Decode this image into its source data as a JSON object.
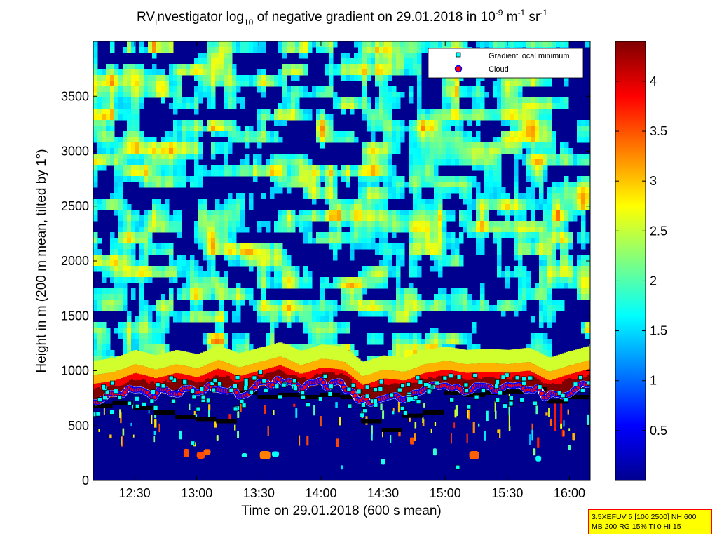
{
  "chart_data": {
    "type": "heatmap",
    "title_main": "RV",
    "title_sub": "I",
    "title_mid": "nvestigator log",
    "title_sub2": "10",
    "title_rest": " of negative gradient on 29.01.2018 in 10",
    "title_sup1": "-9",
    "title_unit_m": " m",
    "title_sup2": "-1",
    "title_unit_sr": " sr",
    "title_sup3": "-1",
    "xlabel": "Time on 29.01.2018 (600 s mean)",
    "ylabel": "Height in m (200 m mean, tilted by 1°)",
    "x_ticks": [
      "12:30",
      "13:00",
      "13:30",
      "14:00",
      "14:30",
      "15:00",
      "15:30",
      "16:00"
    ],
    "x_range": [
      "12:10",
      "16:10"
    ],
    "y_ticks": [
      0,
      500,
      1000,
      1500,
      2000,
      2500,
      3000,
      3500
    ],
    "ylim": [
      0,
      4000
    ],
    "colorbar": {
      "ticks": [
        0.5,
        1,
        1.5,
        2,
        2.5,
        3,
        3.5,
        4
      ],
      "range": [
        0,
        4.4
      ],
      "colormap": "jet"
    },
    "legend": {
      "placement": "top-right",
      "entries": [
        {
          "label": "Gradient local minimum",
          "marker": "square",
          "color": "#00ffff"
        },
        {
          "label": "Cloud",
          "marker": "circle",
          "color": "#ff0000"
        }
      ]
    },
    "cloud_layer": {
      "times": [
        "12:10",
        "12:20",
        "12:30",
        "12:40",
        "12:50",
        "13:00",
        "13:10",
        "13:20",
        "13:30",
        "13:40",
        "13:50",
        "14:00",
        "14:10",
        "14:20",
        "14:30",
        "14:40",
        "14:50",
        "15:00",
        "15:10",
        "15:20",
        "15:30",
        "15:40",
        "15:50",
        "16:00",
        "16:10"
      ],
      "heights": [
        730,
        760,
        830,
        780,
        830,
        790,
        870,
        800,
        850,
        900,
        820,
        880,
        860,
        720,
        780,
        760,
        830,
        860,
        830,
        840,
        830,
        850,
        760,
        820,
        870
      ]
    },
    "mixing_layer_black": {
      "times": [
        "12:10",
        "12:20",
        "12:30",
        "12:40",
        "12:50",
        "13:00",
        "13:10",
        "13:20",
        "13:30",
        "13:40",
        "13:50",
        "14:00",
        "14:10",
        "14:20",
        "14:30",
        "14:40",
        "14:50",
        "15:00",
        "15:10",
        "15:20",
        "15:30",
        "15:40",
        "15:50",
        "16:00",
        "16:10"
      ],
      "heights": [
        680,
        710,
        660,
        620,
        580,
        560,
        540,
        800,
        760,
        780,
        760,
        780,
        760,
        540,
        460,
        590,
        620,
        800,
        780,
        800,
        810,
        830,
        720,
        760,
        800
      ]
    },
    "colors": {
      "background_low": "#00008f",
      "band_top": "#800000"
    }
  },
  "info_box": {
    "line1": "3.5XEFUV 5 [100 2500] NH 600",
    "line2": "MB 200 RG 15% TI 0 HI 15"
  }
}
